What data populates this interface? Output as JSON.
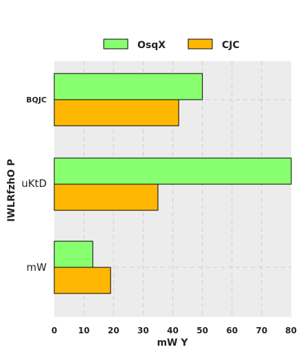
{
  "chart_data": {
    "type": "bar",
    "orientation": "horizontal",
    "categories": [
      "BQJC",
      "uKtD",
      "mW"
    ],
    "series": [
      {
        "name": "OsqX",
        "color": "#88ff6e",
        "values": [
          50,
          80,
          13
        ]
      },
      {
        "name": "CJC",
        "color": "#ffb703",
        "values": [
          42,
          35,
          19
        ]
      }
    ],
    "xlabel": "mW Y",
    "ylabel": "IWLRfzhO P",
    "xlim": [
      0,
      80
    ],
    "xticks": [
      "0",
      "10",
      "20",
      "30",
      "40",
      "50",
      "60",
      "70",
      "80"
    ],
    "grid": true,
    "legend_position": "top-center",
    "plot_background": "#ececec"
  }
}
